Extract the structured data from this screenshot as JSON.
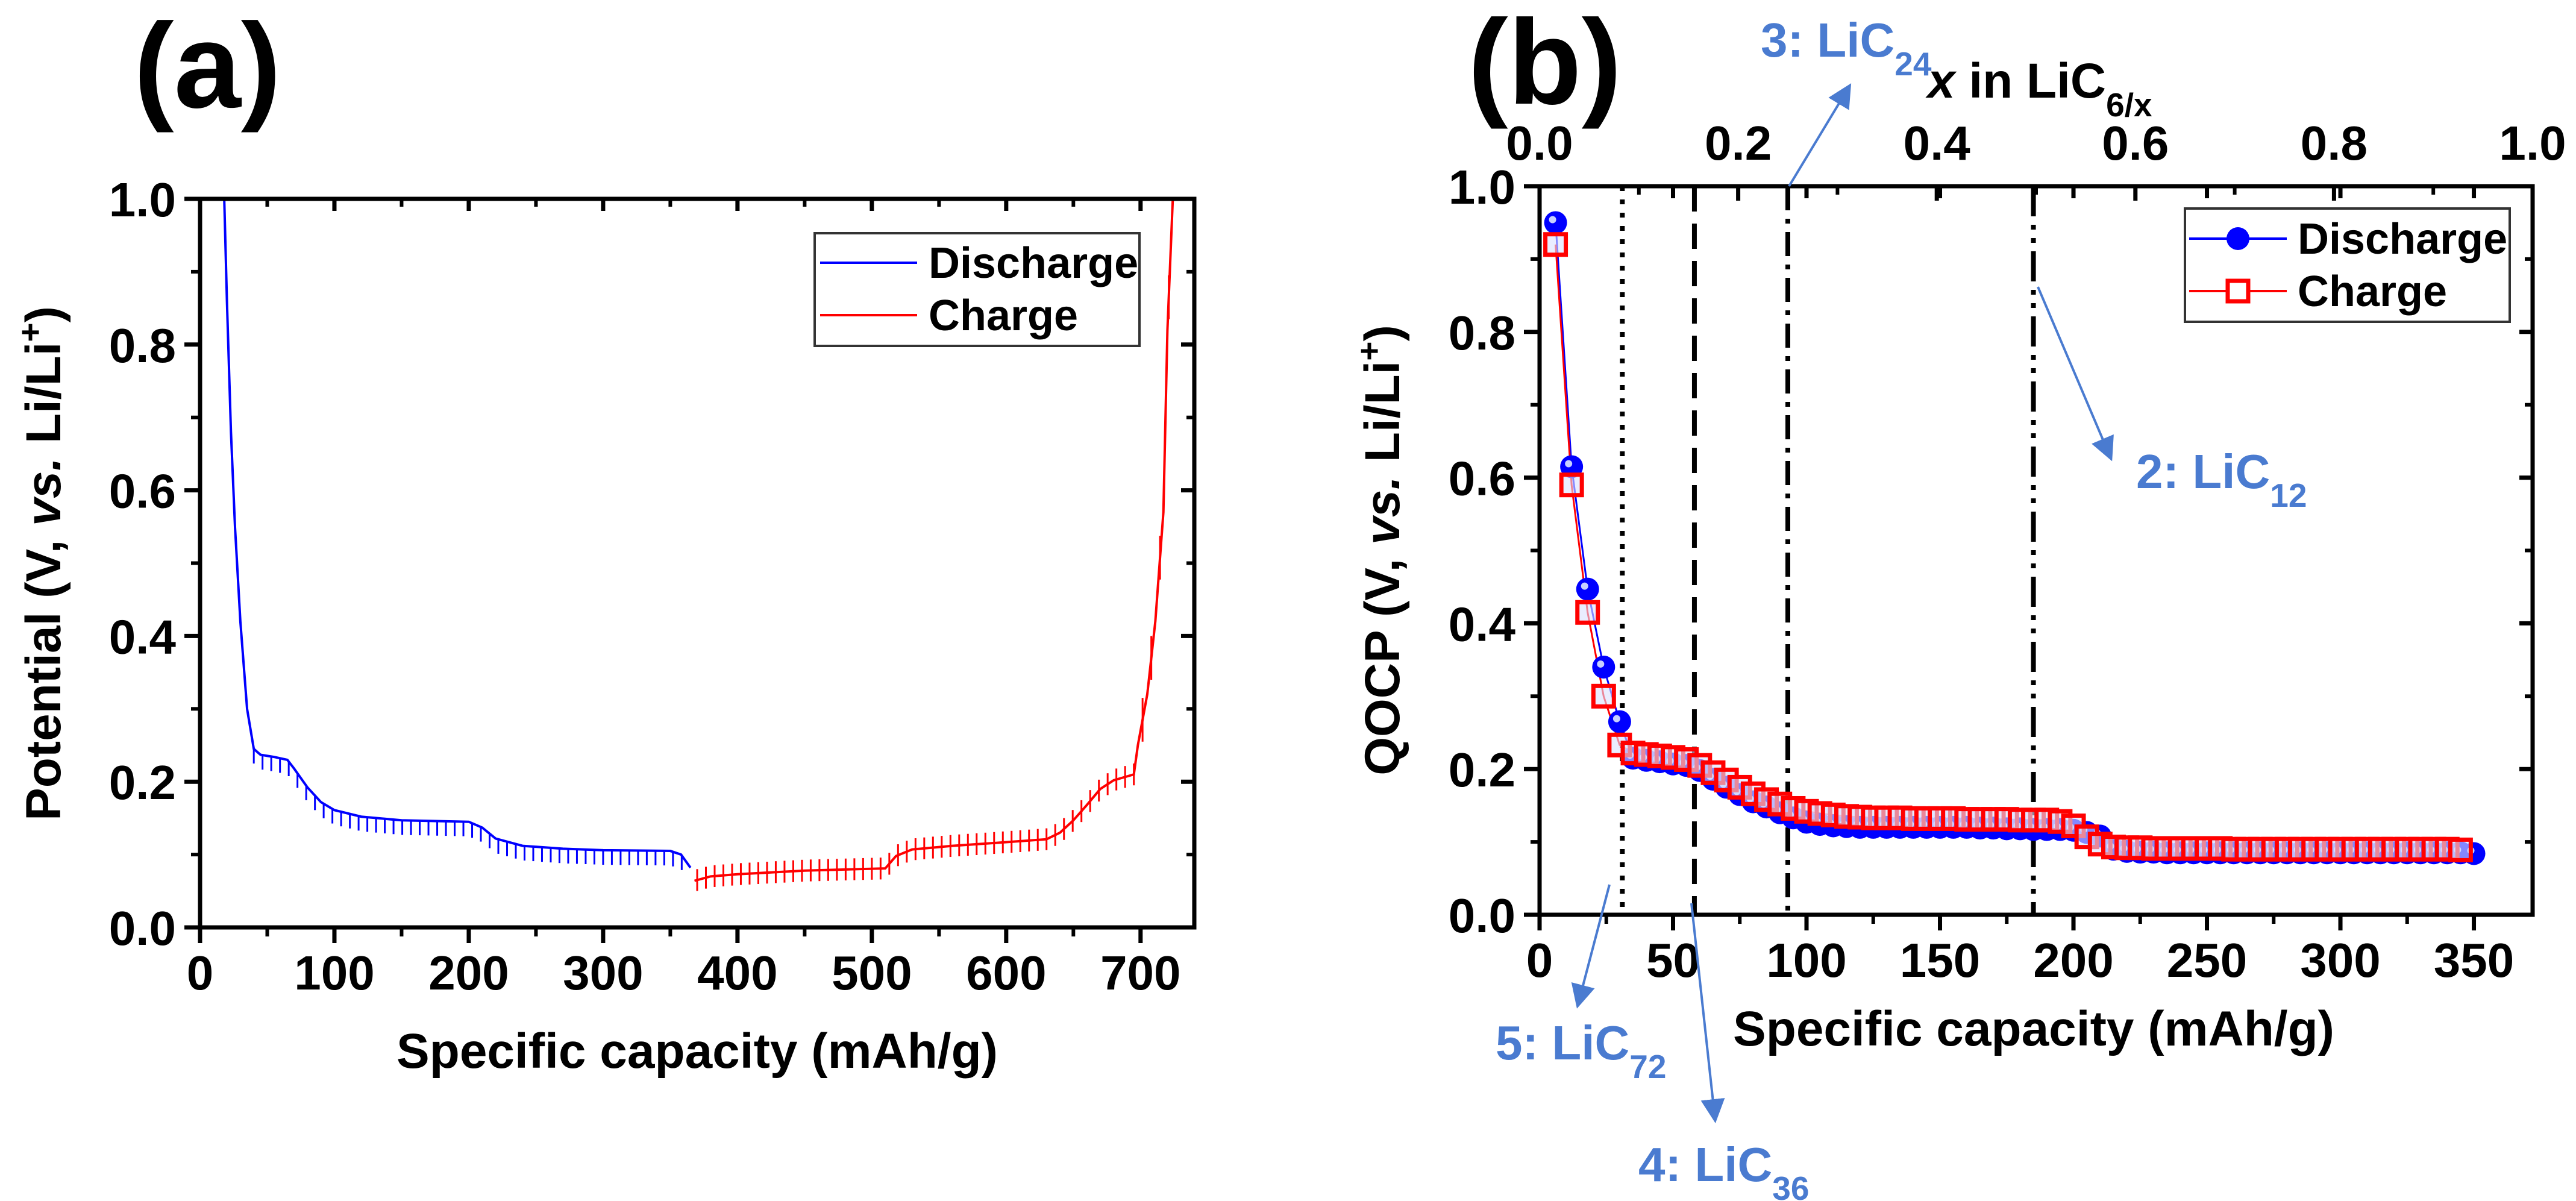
{
  "chart_data": [
    {
      "type": "line",
      "panel_label": "(a)",
      "title": "",
      "xlabel": "Specific capacity (mAh/g)",
      "ylabel_parts": [
        "Potential (V, ",
        "vs.",
        " Li/Li",
        "+",
        ")"
      ],
      "xlim": [
        0,
        740
      ],
      "ylim": [
        0,
        1.0
      ],
      "xticks": [
        "0",
        "100",
        "200",
        "300",
        "400",
        "500",
        "600",
        "700"
      ],
      "yticks": [
        "0.0",
        "0.2",
        "0.4",
        "0.6",
        "0.8",
        "1.0"
      ],
      "grid": false,
      "legend": {
        "placement": "top-right",
        "entries": [
          "Discharge",
          "Charge"
        ]
      },
      "colors": {
        "Discharge": "#0000ff",
        "Charge": "#ff0000"
      },
      "relaxation_marks": {
        "interval": 6.5,
        "discharge_drop": 0.02,
        "charge_span": 0.03
      },
      "series": [
        {
          "name": "Discharge",
          "points": [
            [
              18,
              1.0
            ],
            [
              20,
              0.86
            ],
            [
              23,
              0.68
            ],
            [
              26,
              0.55
            ],
            [
              30,
              0.42
            ],
            [
              35,
              0.3
            ],
            [
              40,
              0.245
            ],
            [
              45,
              0.237
            ],
            [
              55,
              0.234
            ],
            [
              65,
              0.23
            ],
            [
              70,
              0.218
            ],
            [
              80,
              0.192
            ],
            [
              90,
              0.172
            ],
            [
              100,
              0.161
            ],
            [
              120,
              0.152
            ],
            [
              150,
              0.147
            ],
            [
              200,
              0.145
            ],
            [
              210,
              0.137
            ],
            [
              220,
              0.122
            ],
            [
              240,
              0.112
            ],
            [
              270,
              0.108
            ],
            [
              300,
              0.106
            ],
            [
              350,
              0.105
            ],
            [
              358,
              0.1
            ],
            [
              365,
              0.082
            ]
          ]
        },
        {
          "name": "Charge",
          "points": [
            [
              368,
              0.064
            ],
            [
              380,
              0.07
            ],
            [
              400,
              0.073
            ],
            [
              450,
              0.078
            ],
            [
              510,
              0.081
            ],
            [
              518,
              0.098
            ],
            [
              530,
              0.107
            ],
            [
              560,
              0.112
            ],
            [
              600,
              0.117
            ],
            [
              630,
              0.121
            ],
            [
              640,
              0.13
            ],
            [
              650,
              0.147
            ],
            [
              660,
              0.168
            ],
            [
              670,
              0.19
            ],
            [
              680,
              0.202
            ],
            [
              695,
              0.21
            ],
            [
              698,
              0.25
            ],
            [
              705,
              0.32
            ],
            [
              711,
              0.42
            ],
            [
              717,
              0.57
            ],
            [
              720,
              0.82
            ],
            [
              724,
              1.0
            ]
          ]
        }
      ]
    },
    {
      "type": "scatter",
      "panel_label": "(b)",
      "title": "",
      "xlabel": "Specific capacity (mAh/g)",
      "ylabel_parts": [
        "QOCP (V, ",
        "vs.",
        " Li/Li",
        "+",
        ")"
      ],
      "top_xlabel_parts": [
        "x",
        " in LiC",
        "6/x"
      ],
      "xlim": [
        0,
        372
      ],
      "ylim": [
        0,
        1.0
      ],
      "top_xlim": [
        0,
        1.0
      ],
      "xticks": [
        "0",
        "50",
        "100",
        "150",
        "200",
        "250",
        "300",
        "350"
      ],
      "top_xticks": [
        "0.0",
        "0.2",
        "0.4",
        "0.6",
        "0.8",
        "1.0"
      ],
      "yticks": [
        "0.0",
        "0.2",
        "0.4",
        "0.6",
        "0.8",
        "1.0"
      ],
      "grid": false,
      "legend": {
        "placement": "top-right",
        "entries": [
          "Discharge",
          "Charge"
        ]
      },
      "colors": {
        "Discharge": "#0000ff",
        "Charge": "#ff0000",
        "annotation": "#4a7bd0"
      },
      "vertical_lines": [
        {
          "x": 31,
          "style": "dotted",
          "stage": "5: LiC72"
        },
        {
          "x": 58,
          "style": "dashed",
          "stage": "4: LiC36"
        },
        {
          "x": 93,
          "style": "dash-dot",
          "stage": "3: LiC24"
        },
        {
          "x": 185,
          "style": "dash-dot-dot",
          "stage": "2: LiC12"
        }
      ],
      "annotations": [
        {
          "prefix": "3: LiC",
          "sub": "24"
        },
        {
          "prefix": "2: LiC",
          "sub": "12"
        },
        {
          "prefix": "5: LiC",
          "sub": "72"
        },
        {
          "prefix": "4: LiC",
          "sub": "36"
        }
      ],
      "series": [
        {
          "name": "Discharge",
          "marker": "circle",
          "points": [
            [
              6,
              0.95
            ],
            [
              12,
              0.615
            ],
            [
              18,
              0.447
            ],
            [
              24,
              0.34
            ],
            [
              30,
              0.265
            ],
            [
              35,
              0.215
            ],
            [
              40,
              0.212
            ],
            [
              45,
              0.21
            ],
            [
              50,
              0.207
            ],
            [
              55,
              0.205
            ],
            [
              60,
              0.198
            ],
            [
              65,
              0.186
            ],
            [
              70,
              0.175
            ],
            [
              75,
              0.165
            ],
            [
              80,
              0.155
            ],
            [
              85,
              0.148
            ],
            [
              90,
              0.14
            ],
            [
              95,
              0.133
            ],
            [
              100,
              0.127
            ],
            [
              105,
              0.124
            ],
            [
              110,
              0.122
            ],
            [
              115,
              0.121
            ],
            [
              120,
              0.12
            ],
            [
              125,
              0.12
            ],
            [
              130,
              0.12
            ],
            [
              135,
              0.12
            ],
            [
              140,
              0.12
            ],
            [
              145,
              0.12
            ],
            [
              150,
              0.12
            ],
            [
              155,
              0.12
            ],
            [
              160,
              0.12
            ],
            [
              165,
              0.119
            ],
            [
              170,
              0.119
            ],
            [
              175,
              0.118
            ],
            [
              180,
              0.118
            ],
            [
              185,
              0.117
            ],
            [
              190,
              0.117
            ],
            [
              195,
              0.117
            ],
            [
              200,
              0.116
            ],
            [
              205,
              0.113
            ],
            [
              210,
              0.108
            ],
            [
              215,
              0.09
            ],
            [
              220,
              0.087
            ],
            [
              225,
              0.086
            ],
            [
              230,
              0.086
            ],
            [
              235,
              0.085
            ],
            [
              240,
              0.085
            ],
            [
              245,
              0.085
            ],
            [
              250,
              0.085
            ],
            [
              255,
              0.085
            ],
            [
              260,
              0.085
            ],
            [
              265,
              0.085
            ],
            [
              270,
              0.085
            ],
            [
              275,
              0.085
            ],
            [
              280,
              0.085
            ],
            [
              285,
              0.085
            ],
            [
              290,
              0.085
            ],
            [
              295,
              0.085
            ],
            [
              300,
              0.085
            ],
            [
              305,
              0.085
            ],
            [
              310,
              0.085
            ],
            [
              315,
              0.085
            ],
            [
              320,
              0.085
            ],
            [
              325,
              0.085
            ],
            [
              330,
              0.085
            ],
            [
              335,
              0.085
            ],
            [
              340,
              0.085
            ],
            [
              345,
              0.085
            ],
            [
              350,
              0.084
            ]
          ]
        },
        {
          "name": "Charge",
          "marker": "square",
          "points": [
            [
              6,
              0.92
            ],
            [
              12,
              0.59
            ],
            [
              18,
              0.415
            ],
            [
              24,
              0.3
            ],
            [
              30,
              0.233
            ],
            [
              35,
              0.222
            ],
            [
              40,
              0.22
            ],
            [
              45,
              0.218
            ],
            [
              50,
              0.216
            ],
            [
              55,
              0.213
            ],
            [
              60,
              0.205
            ],
            [
              65,
              0.195
            ],
            [
              70,
              0.185
            ],
            [
              75,
              0.175
            ],
            [
              80,
              0.166
            ],
            [
              85,
              0.158
            ],
            [
              90,
              0.152
            ],
            [
              95,
              0.146
            ],
            [
              100,
              0.142
            ],
            [
              105,
              0.139
            ],
            [
              110,
              0.137
            ],
            [
              115,
              0.135
            ],
            [
              120,
              0.134
            ],
            [
              125,
              0.133
            ],
            [
              130,
              0.133
            ],
            [
              135,
              0.133
            ],
            [
              140,
              0.132
            ],
            [
              145,
              0.132
            ],
            [
              150,
              0.132
            ],
            [
              155,
              0.132
            ],
            [
              160,
              0.131
            ],
            [
              165,
              0.131
            ],
            [
              170,
              0.131
            ],
            [
              175,
              0.131
            ],
            [
              180,
              0.13
            ],
            [
              185,
              0.13
            ],
            [
              190,
              0.13
            ],
            [
              195,
              0.128
            ],
            [
              200,
              0.122
            ],
            [
              205,
              0.107
            ],
            [
              210,
              0.097
            ],
            [
              215,
              0.093
            ],
            [
              220,
              0.092
            ],
            [
              225,
              0.092
            ],
            [
              230,
              0.091
            ],
            [
              235,
              0.091
            ],
            [
              240,
              0.091
            ],
            [
              245,
              0.091
            ],
            [
              250,
              0.091
            ],
            [
              255,
              0.091
            ],
            [
              260,
              0.09
            ],
            [
              265,
              0.09
            ],
            [
              270,
              0.09
            ],
            [
              275,
              0.09
            ],
            [
              280,
              0.09
            ],
            [
              285,
              0.09
            ],
            [
              290,
              0.09
            ],
            [
              295,
              0.09
            ],
            [
              300,
              0.09
            ],
            [
              305,
              0.09
            ],
            [
              310,
              0.09
            ],
            [
              315,
              0.09
            ],
            [
              320,
              0.09
            ],
            [
              325,
              0.09
            ],
            [
              330,
              0.09
            ],
            [
              335,
              0.09
            ],
            [
              340,
              0.09
            ],
            [
              345,
              0.089
            ]
          ]
        }
      ]
    }
  ]
}
